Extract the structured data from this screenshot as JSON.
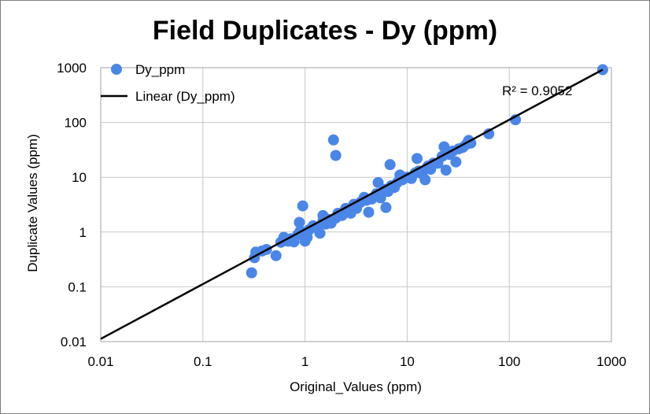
{
  "chart_data": {
    "type": "scatter",
    "title": "Field Duplicates  - Dy (ppm)",
    "xlabel": "Original_Values (ppm)",
    "ylabel": "Duplicate Values (ppm)",
    "x_scale": "log",
    "y_scale": "log",
    "xlim": [
      0.01,
      1000
    ],
    "ylim": [
      0.01,
      1000
    ],
    "x_ticks": [
      "0.01",
      "0.1",
      "1",
      "10",
      "100",
      "1000"
    ],
    "y_ticks": [
      "0.01",
      "0.1",
      "1",
      "10",
      "100",
      "1000"
    ],
    "grid": true,
    "legend_position": "top-left",
    "series": [
      {
        "name": "Dy_ppm",
        "kind": "scatter",
        "color": "#4a86e8",
        "points": [
          [
            0.3,
            0.18
          ],
          [
            0.32,
            0.34
          ],
          [
            0.33,
            0.43
          ],
          [
            0.38,
            0.45
          ],
          [
            0.42,
            0.48
          ],
          [
            0.52,
            0.37
          ],
          [
            0.58,
            0.65
          ],
          [
            0.62,
            0.8
          ],
          [
            0.68,
            0.68
          ],
          [
            0.72,
            0.75
          ],
          [
            0.78,
            0.66
          ],
          [
            0.85,
            0.9
          ],
          [
            0.88,
            1.5
          ],
          [
            0.9,
            1.05
          ],
          [
            0.95,
            3.0
          ],
          [
            1.0,
            0.68
          ],
          [
            1.05,
            0.8
          ],
          [
            1.1,
            1.1
          ],
          [
            1.2,
            1.3
          ],
          [
            1.3,
            1.2
          ],
          [
            1.4,
            0.95
          ],
          [
            1.5,
            1.6
          ],
          [
            1.5,
            2.0
          ],
          [
            1.6,
            1.4
          ],
          [
            1.7,
            1.7
          ],
          [
            1.8,
            1.45
          ],
          [
            1.9,
            48
          ],
          [
            2.0,
            25
          ],
          [
            2.0,
            1.8
          ],
          [
            2.1,
            2.2
          ],
          [
            2.3,
            2.0
          ],
          [
            2.5,
            2.7
          ],
          [
            2.8,
            2.2
          ],
          [
            3.0,
            3.2
          ],
          [
            3.2,
            2.7
          ],
          [
            3.5,
            3.5
          ],
          [
            3.8,
            4.3
          ],
          [
            4.0,
            3.8
          ],
          [
            4.2,
            2.3
          ],
          [
            4.5,
            4.0
          ],
          [
            5.0,
            5.0
          ],
          [
            5.2,
            8.0
          ],
          [
            5.5,
            4.2
          ],
          [
            6.0,
            6.0
          ],
          [
            6.2,
            2.8
          ],
          [
            6.5,
            5.5
          ],
          [
            6.8,
            17
          ],
          [
            7.0,
            7.0
          ],
          [
            7.5,
            6.5
          ],
          [
            8.0,
            8.0
          ],
          [
            8.5,
            11
          ],
          [
            9.0,
            9.0
          ],
          [
            10,
            10
          ],
          [
            11,
            9.5
          ],
          [
            12,
            12
          ],
          [
            12.5,
            22
          ],
          [
            13,
            13
          ],
          [
            14,
            11.5
          ],
          [
            15,
            9.0
          ],
          [
            16,
            16
          ],
          [
            17,
            14
          ],
          [
            18,
            18
          ],
          [
            20,
            18
          ],
          [
            22,
            24
          ],
          [
            23,
            36
          ],
          [
            24,
            13.5
          ],
          [
            26,
            26
          ],
          [
            28,
            30
          ],
          [
            30,
            19
          ],
          [
            32,
            33
          ],
          [
            35,
            35
          ],
          [
            38,
            40
          ],
          [
            40,
            47
          ],
          [
            42,
            42
          ],
          [
            63,
            62
          ],
          [
            115,
            112
          ],
          [
            820,
            920
          ]
        ]
      },
      {
        "name": "Linear (Dy_ppm)",
        "kind": "trendline",
        "color": "#000000",
        "x": [
          0.01,
          820
        ],
        "y": [
          0.0112,
          920
        ]
      }
    ],
    "annotations": [
      {
        "text": "R² = 0.9052",
        "x": 400,
        "y": 500
      }
    ]
  }
}
